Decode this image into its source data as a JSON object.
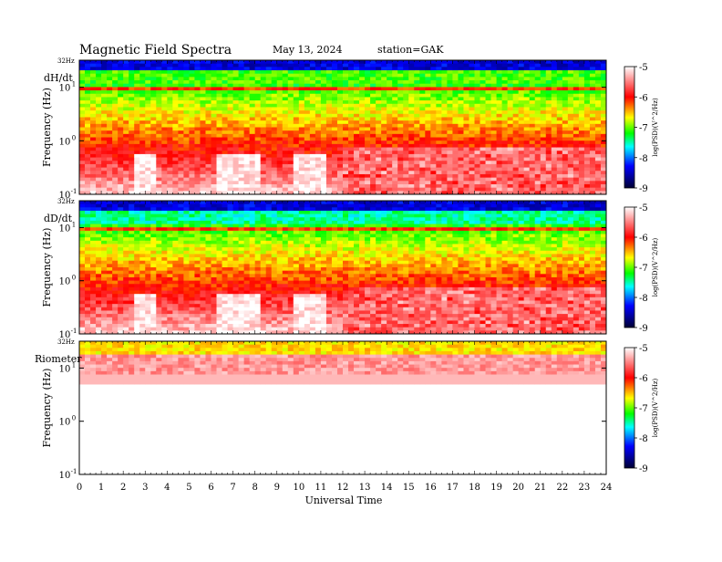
{
  "header": {
    "title": "Magnetic  Field  Spectra",
    "date": "May 13, 2024",
    "station": "station=GAK"
  },
  "colors": {
    "scale": [
      "#ffffff",
      "#ff0000",
      "#ffff00",
      "#00ff00",
      "#00ffff",
      "#0000ff",
      "#000033"
    ]
  },
  "chart_data": {
    "type": "heatmap",
    "x": {
      "label": "Universal Time",
      "range": [
        0,
        24
      ],
      "ticks": [
        0,
        1,
        2,
        3,
        4,
        5,
        6,
        7,
        8,
        9,
        10,
        11,
        12,
        13,
        14,
        15,
        16,
        17,
        18,
        19,
        20,
        21,
        22,
        23,
        24
      ],
      "tick_labels": [
        "0",
        "1",
        "2",
        "3",
        "4",
        "5",
        "6",
        "7",
        "8",
        "9",
        "10",
        "11",
        "12",
        "13",
        "14",
        "15",
        "16",
        "17",
        "18",
        "19",
        "20",
        "21",
        "22",
        "23",
        "24"
      ]
    },
    "colorbar": {
      "range": [
        -9,
        -5
      ],
      "ticks": [
        -5,
        -6,
        -7,
        -8,
        -9
      ],
      "tick_labels": [
        "-5",
        "-6",
        "-7",
        "-8",
        "-9"
      ],
      "label": "log(PSD)(V^2/Hz)"
    },
    "panels": [
      {
        "name": "dH/dt",
        "ylabel": "Frequency  (Hz)",
        "top_label": "32Hz",
        "yscale": "log",
        "ylim": [
          0.1,
          32
        ],
        "y_ticks": [
          {
            "value": 10,
            "base": "10",
            "exp": "1"
          },
          {
            "value": 1,
            "base": "10",
            "exp": "0"
          },
          {
            "value": 0.1,
            "base": "10",
            "exp": "-1"
          }
        ]
      },
      {
        "name": "dD/dt",
        "ylabel": "Frequency  (Hz)",
        "top_label": "32Hz",
        "yscale": "log",
        "ylim": [
          0.1,
          32
        ],
        "y_ticks": [
          {
            "value": 10,
            "base": "10",
            "exp": "1"
          },
          {
            "value": 1,
            "base": "10",
            "exp": "0"
          },
          {
            "value": 0.1,
            "base": "10",
            "exp": "-1"
          }
        ]
      },
      {
        "name": "Riometer",
        "ylabel": "Frequency  (Hz)",
        "top_label": "32Hz",
        "yscale": "log",
        "ylim": [
          0.1,
          32
        ],
        "y_ticks": [
          {
            "value": 10,
            "base": "10",
            "exp": "1"
          },
          {
            "value": 1,
            "base": "10",
            "exp": "0"
          },
          {
            "value": 0.1,
            "base": "10",
            "exp": "-1"
          }
        ]
      }
    ]
  }
}
